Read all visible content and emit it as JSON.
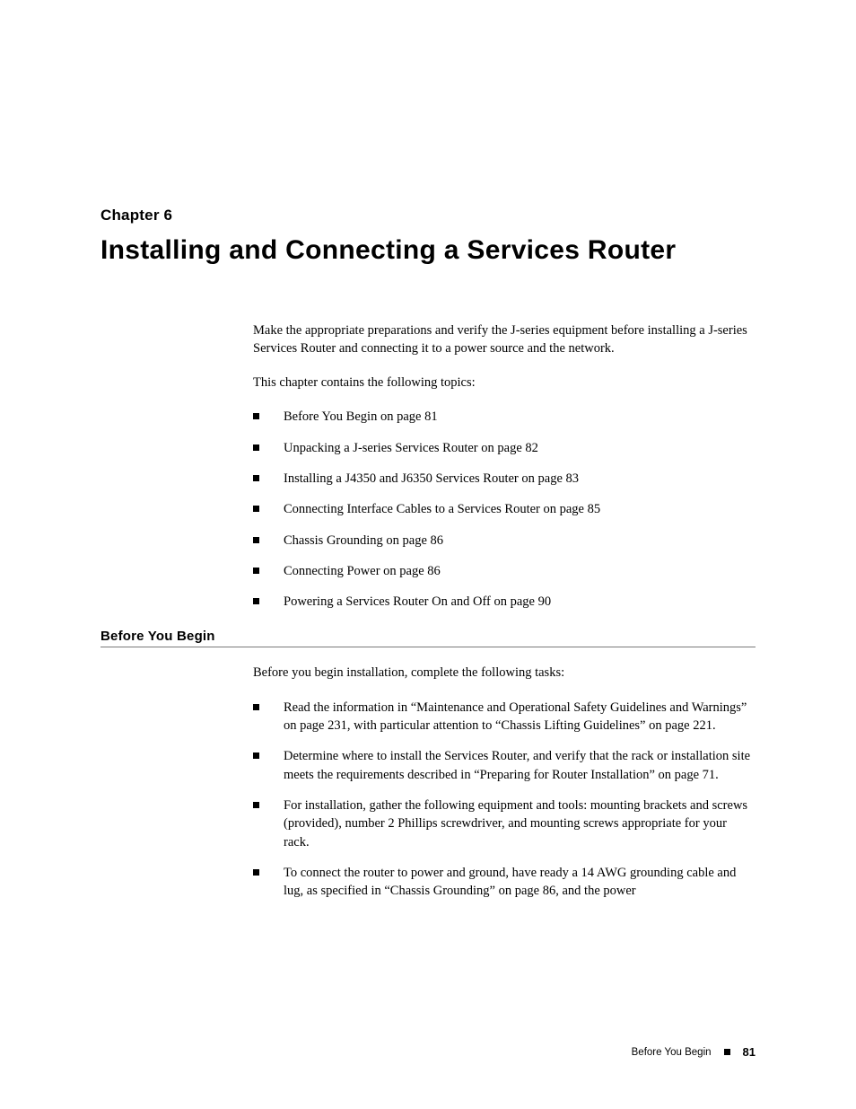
{
  "chapter_label": "Chapter 6",
  "chapter_title": "Installing and Connecting a Services Router",
  "intro_para": "Make the appropriate preparations and verify the J-series equipment before installing a J-series Services Router and connecting it to a power source and the network.",
  "topics_intro": "This chapter contains the following topics:",
  "topics": [
    "Before You Begin on page 81",
    "Unpacking a J-series Services Router on page 82",
    "Installing a J4350 and J6350 Services Router on page 83",
    "Connecting Interface Cables to a Services Router on page 85",
    "Chassis Grounding on page 86",
    "Connecting Power on page 86",
    "Powering a Services Router On and Off on page 90"
  ],
  "section_heading": "Before You Begin",
  "section_intro": "Before you begin installation, complete the following tasks:",
  "tasks": [
    "Read the information in “Maintenance and Operational Safety Guidelines and Warnings” on page 231, with particular attention to “Chassis Lifting Guidelines” on page 221.",
    "Determine where to install the Services Router, and verify that the rack or installation site meets the requirements described in “Preparing for Router Installation” on page 71.",
    "For installation, gather the following equipment and tools: mounting brackets and screws (provided), number 2 Phillips screwdriver, and mounting screws appropriate for your rack.",
    "To connect the router to power and ground, have ready a 14 AWG grounding cable and lug, as specified in “Chassis Grounding” on page 86, and the power"
  ],
  "footer_text": "Before You Begin",
  "page_number": "81"
}
